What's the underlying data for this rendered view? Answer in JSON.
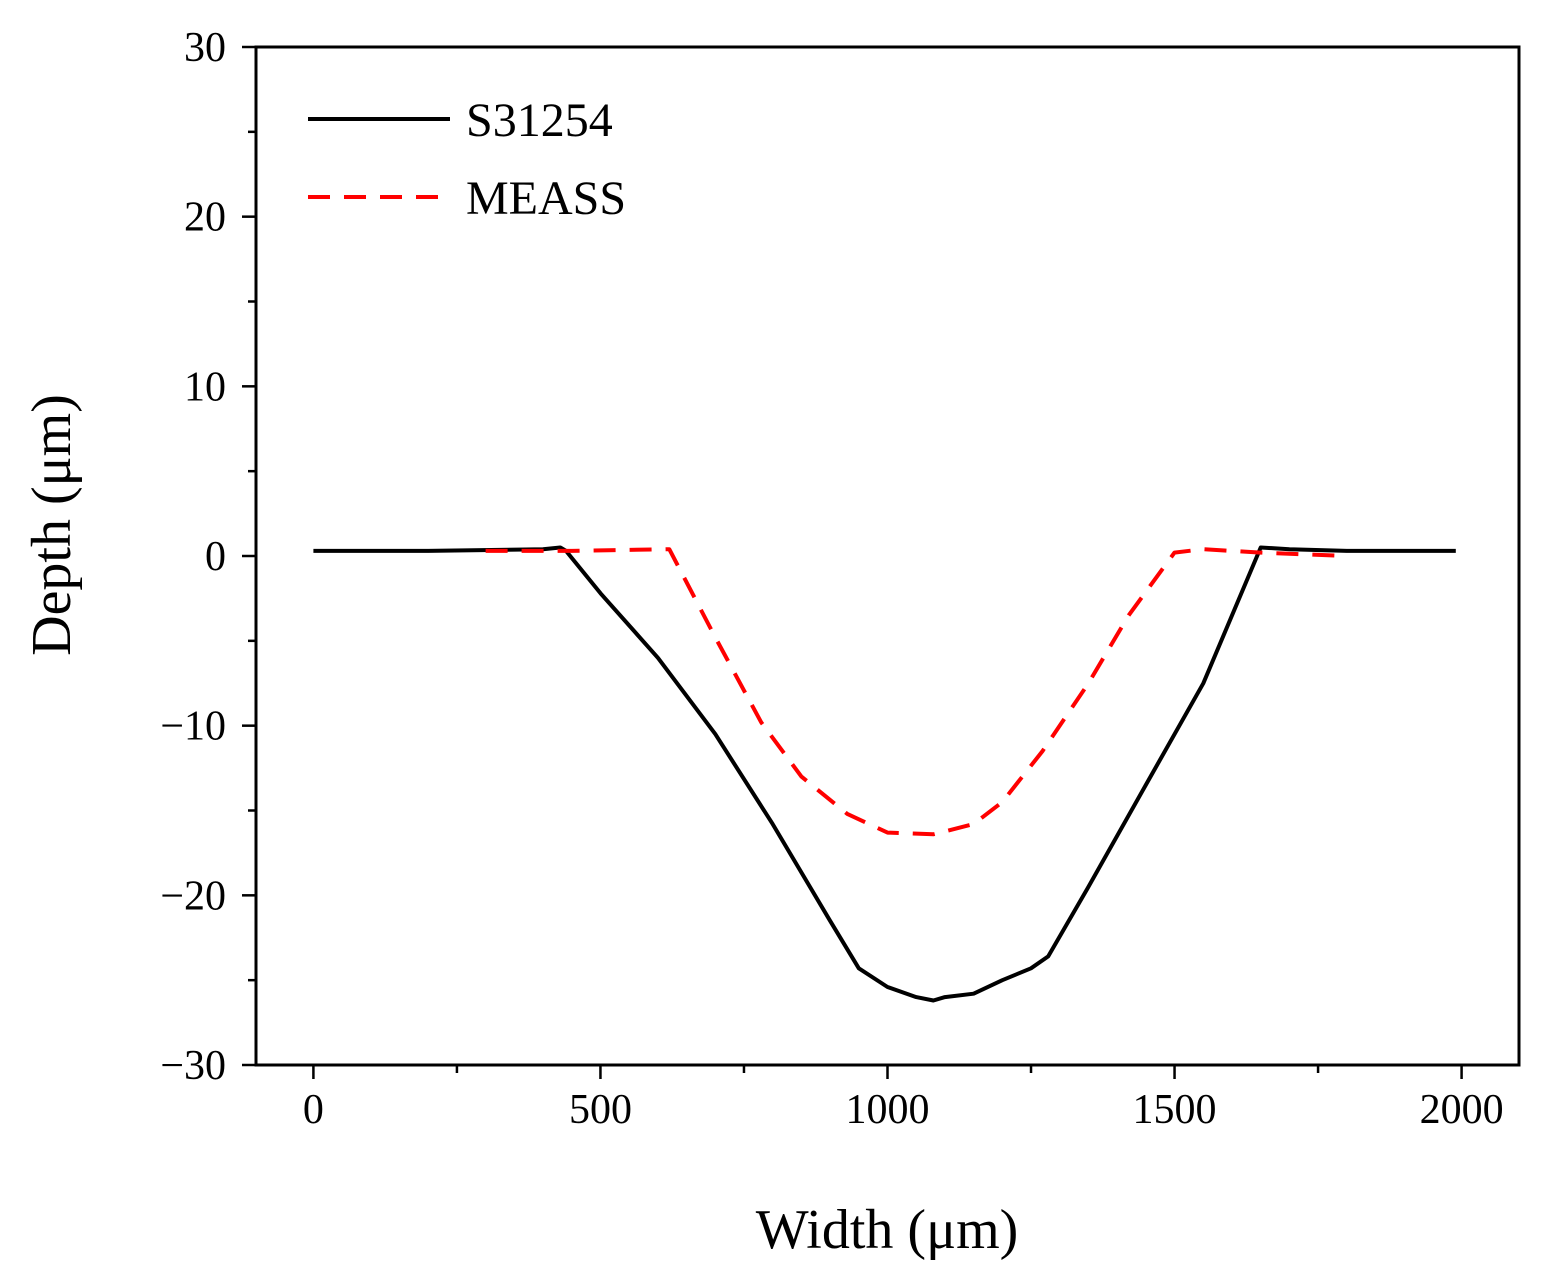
{
  "chart_data": {
    "type": "line",
    "title": "",
    "xlabel": "Width (μm)",
    "ylabel": "Depth (μm)",
    "xlim": [
      -100,
      2100
    ],
    "ylim": [
      -30,
      30
    ],
    "x_ticks": [
      0,
      500,
      1000,
      1500,
      2000
    ],
    "x_tick_labels": [
      "0",
      "500",
      "1000",
      "1500",
      "2000"
    ],
    "x_minor_ticks": [
      250,
      750,
      1250,
      1750
    ],
    "y_ticks": [
      -30,
      -20,
      -10,
      0,
      10,
      20,
      30
    ],
    "y_tick_labels": [
      "−30",
      "−20",
      "−10",
      "0",
      "10",
      "20",
      "30"
    ],
    "y_minor_ticks": [
      -25,
      -15,
      -5,
      5,
      15,
      25
    ],
    "grid": false,
    "legend_position": "top-left",
    "series": [
      {
        "name": "S31254",
        "color": "#000000",
        "dash": "solid",
        "x": [
          0,
          200,
          400,
          430,
          440,
          500,
          600,
          700,
          800,
          900,
          950,
          1000,
          1050,
          1080,
          1100,
          1150,
          1200,
          1250,
          1280,
          1350,
          1450,
          1550,
          1650,
          1700,
          1800,
          1900,
          1990
        ],
        "y": [
          0.3,
          0.3,
          0.4,
          0.5,
          0.3,
          -2.2,
          -6.0,
          -10.5,
          -15.8,
          -21.5,
          -24.3,
          -25.4,
          -26.0,
          -26.2,
          -26.0,
          -25.8,
          -25.0,
          -24.3,
          -23.6,
          -19.5,
          -13.5,
          -7.5,
          0.5,
          0.4,
          0.3,
          0.3,
          0.3
        ]
      },
      {
        "name": "MEASS",
        "color": "#ff0000",
        "dash": "dashed",
        "x": [
          300,
          450,
          620,
          700,
          780,
          850,
          930,
          1000,
          1080,
          1150,
          1200,
          1270,
          1350,
          1420,
          1500,
          1550,
          1650,
          1800
        ],
        "y": [
          0.3,
          0.3,
          0.4,
          -4.8,
          -9.8,
          -13.0,
          -15.2,
          -16.3,
          -16.4,
          -15.8,
          -14.5,
          -11.5,
          -7.5,
          -3.5,
          0.2,
          0.4,
          0.2,
          0.0
        ]
      }
    ]
  }
}
